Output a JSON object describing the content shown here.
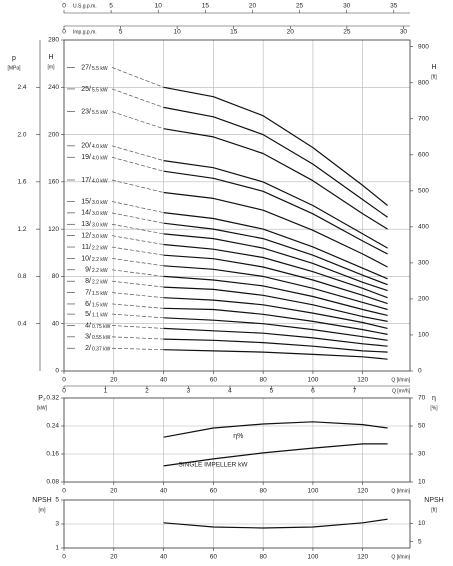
{
  "chart_data": [
    {
      "type": "line",
      "x": [
        40,
        60,
        80,
        100,
        120,
        130
      ],
      "xlim": [
        0,
        139
      ],
      "xticks": [
        0,
        20,
        40,
        60,
        80,
        100,
        120
      ],
      "xlabel": "Q [l/min]",
      "x2label": "Q [m³/h]",
      "x2lim": [
        0,
        8.34
      ],
      "x2ticks": [
        0,
        1,
        2,
        3,
        4,
        5,
        6,
        7
      ],
      "us_label": "U.S.g.p.m.",
      "us_lim": [
        0,
        36.72
      ],
      "us_ticks": [
        0,
        5,
        10,
        15,
        20,
        25,
        30,
        35
      ],
      "imp_label": "Imp.g.p.m.",
      "imp_lim": [
        0,
        30.58
      ],
      "imp_ticks": [
        0,
        5,
        10,
        15,
        20,
        25,
        30
      ],
      "ylabel": "H",
      "yunit": "[m]",
      "ylim": [
        0,
        280
      ],
      "yticks": [
        0,
        40,
        80,
        120,
        160,
        200,
        240,
        280
      ],
      "y2label": "H",
      "y2unit": "[ft]",
      "y2lim": [
        0,
        918.6
      ],
      "y2ticks": [
        0,
        100,
        200,
        300,
        400,
        500,
        600,
        700,
        800,
        900
      ],
      "plabel": "p",
      "punit": "[MPa]",
      "plim": [
        0,
        2.8
      ],
      "pticks": [
        0.4,
        0.8,
        1.2,
        1.6,
        {
          "value": 2,
          "label": "2.0"
        },
        2.4
      ],
      "grid": true,
      "color": "#111111",
      "series": [
        {
          "name": "27/",
          "power": "5.5 kW",
          "values": [
            240,
            232,
            216,
            189,
            157,
            140
          ]
        },
        {
          "name": "25/",
          "power": "5.5 kW",
          "values": [
            223,
            215,
            200,
            175,
            145,
            130
          ]
        },
        {
          "name": "23/",
          "power": "5.5 kW",
          "values": [
            205,
            198,
            184,
            161,
            133,
            120
          ]
        },
        {
          "name": "20/",
          "power": "4.0 kW",
          "values": [
            178,
            172,
            160,
            140,
            116,
            104
          ]
        },
        {
          "name": "19/",
          "power": "4.0 kW",
          "values": [
            169,
            163,
            152,
            133,
            110,
            99
          ]
        },
        {
          "name": "17/",
          "power": "4.0 kW",
          "values": [
            151,
            146,
            136,
            119,
            99,
            88
          ]
        },
        {
          "name": "15/",
          "power": "3.0 kW",
          "values": [
            134,
            129,
            120,
            105,
            87,
            78
          ]
        },
        {
          "name": "14/",
          "power": "3.0 kW",
          "values": [
            125,
            120,
            112,
            98,
            81,
            73
          ]
        },
        {
          "name": "13/",
          "power": "3.0 kW",
          "values": [
            116,
            112,
            104,
            91,
            75,
            68
          ]
        },
        {
          "name": "12/",
          "power": "3.0 kW",
          "values": [
            107,
            103,
            96,
            84,
            70,
            62
          ]
        },
        {
          "name": "11/",
          "power": "2.2 kW",
          "values": [
            98,
            95,
            88,
            77,
            64,
            57
          ]
        },
        {
          "name": "10/",
          "power": "2.2 kW",
          "values": [
            89,
            86,
            80,
            70,
            58,
            52
          ]
        },
        {
          "name": "9/",
          "power": "2.2 kW",
          "values": [
            80,
            77,
            72,
            63,
            52,
            47
          ]
        },
        {
          "name": "8/",
          "power": "2.2 kW",
          "values": [
            71,
            69,
            64,
            56,
            46,
            42
          ]
        },
        {
          "name": "7/",
          "power": "1.5 kW",
          "values": [
            62,
            60,
            56,
            49,
            41,
            36
          ]
        },
        {
          "name": "6/",
          "power": "1.5 kW",
          "values": [
            53,
            52,
            48,
            42,
            35,
            31
          ]
        },
        {
          "name": "5/",
          "power": "1.1 kW",
          "values": [
            45,
            43,
            40,
            35,
            29,
            26
          ]
        },
        {
          "name": "4/",
          "power": "0.75 kW",
          "values": [
            36,
            34,
            32,
            28,
            23,
            21
          ]
        },
        {
          "name": "3/",
          "power": "0.55 kW",
          "values": [
            27,
            26,
            24,
            21,
            17,
            16
          ]
        },
        {
          "name": "2/",
          "power": "0.37 kW",
          "values": [
            18,
            17,
            16,
            14,
            12,
            10
          ]
        }
      ]
    },
    {
      "type": "line",
      "x": [
        40,
        60,
        80,
        100,
        120,
        130
      ],
      "xlim": [
        0,
        139
      ],
      "xticks": [
        0,
        20,
        40,
        60,
        80,
        100,
        120
      ],
      "xlabel": "Q [l/min]",
      "ylabel": "P₂",
      "yunit": "[kW]",
      "ylim": [
        0.08,
        0.32
      ],
      "yticks": [
        0.08,
        0.16,
        0.24,
        0.32
      ],
      "y2label": "η",
      "y2unit": "[%]",
      "y2lim": [
        10,
        70
      ],
      "y2ticks": [
        10,
        30,
        50,
        70
      ],
      "grid": true,
      "color": "#111111",
      "series": [
        {
          "name": "η%",
          "axis": "y2",
          "values": [
            42,
            48.6,
            51.4,
            53,
            51,
            48.6
          ]
        },
        {
          "name": "SINGLE IMPELLER kW",
          "values": [
            0.126,
            0.146,
            0.163,
            0.177,
            0.189,
            0.189
          ]
        }
      ]
    },
    {
      "type": "line",
      "x": [
        40,
        60,
        80,
        100,
        120,
        130
      ],
      "xlim": [
        0,
        139
      ],
      "xticks": [
        0,
        20,
        40,
        60,
        80,
        100,
        120
      ],
      "xlabel": "Q [l/min]",
      "ylabel": "NPSH",
      "yunit": "[m]",
      "ylim": [
        1,
        5
      ],
      "yticks": [
        1,
        3,
        5
      ],
      "y2label": "NPSH",
      "y2unit": "[ft]",
      "y2lim": [
        3.281,
        16.404
      ],
      "y2ticks": [
        5,
        10
      ],
      "grid": true,
      "color": "#111111",
      "series": [
        {
          "values": [
            3.1,
            2.75,
            2.67,
            2.75,
            3.1,
            3.4
          ]
        }
      ]
    }
  ]
}
